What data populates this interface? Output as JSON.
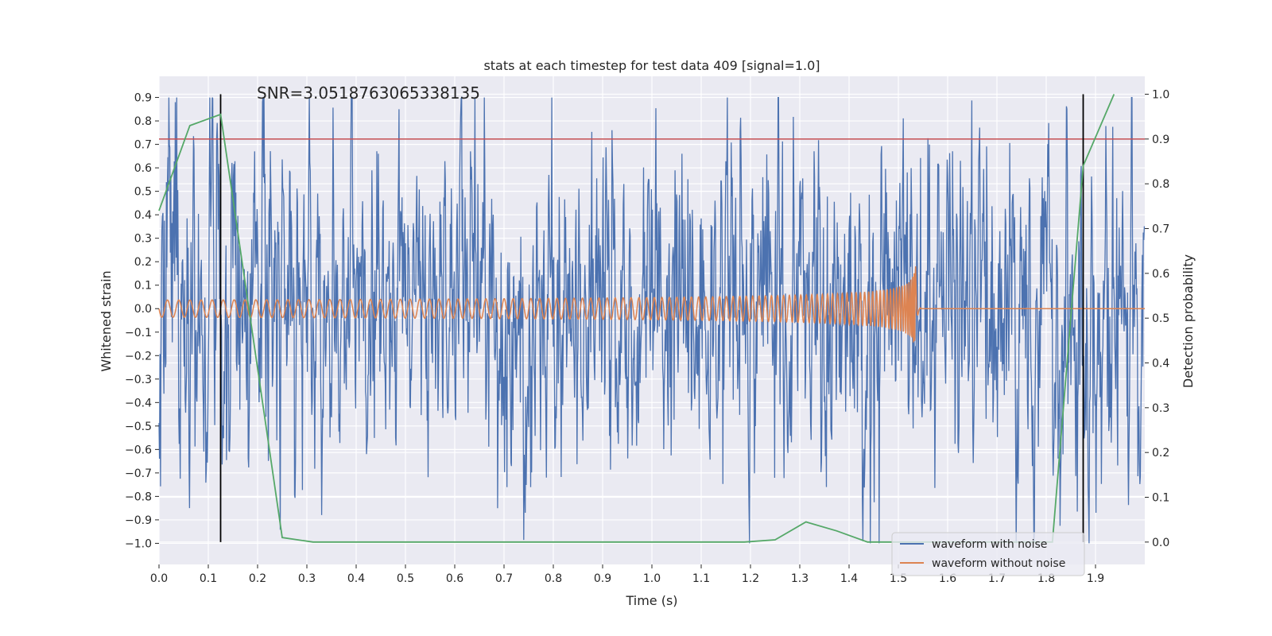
{
  "chart_data": {
    "type": "line",
    "title": "stats at each timestep for test data 409 [signal=1.0]",
    "annotation": "SNR=3.0518763065338135",
    "xlabel": "Time (s)",
    "ylabel_left": "Whitened strain",
    "ylabel_right": "Detection probability",
    "xlim": [
      0.0,
      2.0
    ],
    "ylim_left": [
      -1.09,
      0.99
    ],
    "ylim_right": [
      -0.05,
      1.04
    ],
    "xticks": [
      "0.0",
      "0.1",
      "0.2",
      "0.3",
      "0.4",
      "0.5",
      "0.6",
      "0.7",
      "0.8",
      "0.9",
      "1.0",
      "1.1",
      "1.2",
      "1.3",
      "1.4",
      "1.5",
      "1.6",
      "1.7",
      "1.8",
      "1.9"
    ],
    "yticks_left": [
      "0.9",
      "0.8",
      "0.7",
      "0.6",
      "0.5",
      "0.4",
      "0.3",
      "0.2",
      "0.1",
      "0.0",
      "-0.1",
      "-0.2",
      "-0.3",
      "-0.4",
      "-0.5",
      "-0.6",
      "-0.7",
      "-0.8",
      "-0.9",
      "-1.0"
    ],
    "yticks_right": [
      "1.0",
      "0.9",
      "0.8",
      "0.7",
      "0.6",
      "0.5",
      "0.4",
      "0.3",
      "0.2",
      "0.1",
      "0.0"
    ],
    "threshold_line": {
      "axis": "right",
      "value": 0.9,
      "color": "#c44e52"
    },
    "vertical_markers": [
      0.125,
      1.875
    ],
    "series": [
      {
        "name": "waveform with noise",
        "axis": "left",
        "color": "#4c72b0",
        "description": "dense noisy strain, amplitude roughly within -1.0 to 0.9",
        "amplitude": 0.35
      },
      {
        "name": "waveform without noise",
        "axis": "left",
        "color": "#dd8452",
        "description": "chirp signal growing in frequency and amplitude, merger near 1.53 s then flat at 0",
        "merger_time": 1.535,
        "peak_amplitude": 0.18
      },
      {
        "name": "detection probability",
        "axis": "right",
        "color": "#55a868",
        "x": [
          0.0,
          0.0625,
          0.125,
          0.25,
          0.3125,
          1.1875,
          1.25,
          1.3125,
          1.375,
          1.4375,
          1.5,
          1.5625,
          1.8125,
          1.875,
          1.9375
        ],
        "values": [
          0.74,
          0.93,
          0.955,
          0.01,
          0.0,
          0.0,
          0.005,
          0.045,
          0.025,
          0.0,
          0.0,
          0.0,
          0.0,
          0.84,
          1.0
        ]
      }
    ],
    "legend": {
      "placement": "lower-right",
      "entries": [
        {
          "label": "waveform with noise",
          "color": "#4c72b0"
        },
        {
          "label": "waveform without noise",
          "color": "#dd8452"
        }
      ]
    }
  }
}
